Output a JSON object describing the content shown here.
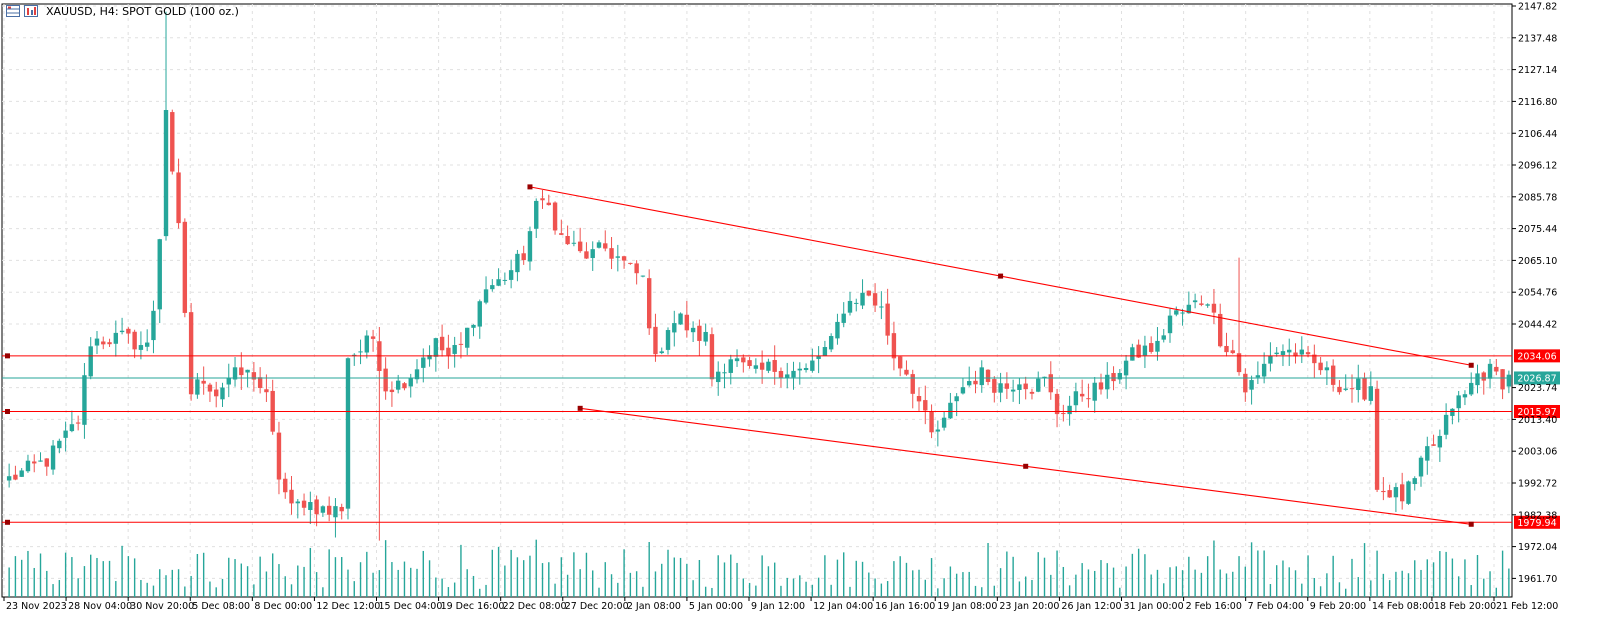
{
  "header": {
    "title": "XAUUSD, H4:  SPOT GOLD (100 oz.)"
  },
  "colors": {
    "bull": "#26a69a",
    "bear": "#ef5350",
    "volume": "#26a69a",
    "trendline": "#ff0000",
    "current_price_line": "#26a69a",
    "grid": "#e0e0e0"
  },
  "chart_data": {
    "type": "candlestick",
    "symbol": "XAUUSD",
    "timeframe": "H4",
    "description": "SPOT GOLD (100 oz.)",
    "ylim": [
      1955.0,
      2147.82
    ],
    "y_ticks": [
      "2147.82",
      "2137.48",
      "2127.14",
      "2116.80",
      "2106.44",
      "2096.12",
      "2085.78",
      "2075.44",
      "2065.10",
      "2054.76",
      "2044.42",
      "2023.74",
      "2013.40",
      "2003.06",
      "1992.72",
      "1982.38",
      "1972.04",
      "1961.70"
    ],
    "x_ticks": [
      "23 Nov 2023",
      "28 Nov 04:00",
      "30 Nov 20:00",
      "5 Dec 08:00",
      "8 Dec 00:00",
      "12 Dec 12:00",
      "15 Dec 04:00",
      "19 Dec 16:00",
      "22 Dec 08:00",
      "27 Dec 20:00",
      "2 Jan 08:00",
      "5 Jan 00:00",
      "9 Jan 12:00",
      "12 Jan 04:00",
      "16 Jan 16:00",
      "19 Jan 08:00",
      "23 Jan 20:00",
      "26 Jan 12:00",
      "31 Jan 00:00",
      "2 Feb 16:00",
      "7 Feb 04:00",
      "9 Feb 20:00",
      "14 Feb 08:00",
      "18 Feb 20:00",
      "21 Feb 12:00"
    ],
    "current_price": 2026.87,
    "grid": true,
    "horizontal_levels": [
      {
        "label": "2034.06",
        "value": 2034.06
      },
      {
        "label": "2015.97",
        "value": 2015.97
      },
      {
        "label": "1979.94",
        "value": 1979.94
      }
    ],
    "trendlines": [
      {
        "name": "upper",
        "from": {
          "bar": 83,
          "price": 2089.0
        },
        "to": {
          "bar": 233,
          "price": 2031.0
        }
      },
      {
        "name": "lower",
        "from": {
          "bar": 91,
          "price": 2017.0
        },
        "to": {
          "bar": 233,
          "price": 1979.3
        }
      }
    ],
    "anchors": [
      {
        "x": 11.6,
        "y": 2015.97
      },
      {
        "x": 11.6,
        "y": 2034.06
      },
      {
        "x": 12.6,
        "y": 1979.94
      }
    ],
    "close_path": [
      [
        0,
        1994
      ],
      [
        6,
        2000
      ],
      [
        11,
        2013
      ],
      [
        13,
        2039
      ],
      [
        18,
        2040
      ],
      [
        22,
        2037
      ],
      [
        24,
        2062
      ],
      [
        25,
        2110
      ],
      [
        27,
        2075
      ],
      [
        29,
        2022
      ],
      [
        31,
        2027
      ],
      [
        33,
        2022
      ],
      [
        35,
        2027
      ],
      [
        37,
        2028
      ],
      [
        39,
        2028
      ],
      [
        41,
        2020
      ],
      [
        43,
        1995
      ],
      [
        45,
        1984
      ],
      [
        47,
        1987
      ],
      [
        49,
        1985
      ],
      [
        51,
        1983
      ],
      [
        53,
        1985
      ],
      [
        54,
        2034
      ],
      [
        56,
        2036
      ],
      [
        58,
        2040
      ],
      [
        60,
        2024
      ],
      [
        62,
        2025
      ],
      [
        64,
        2028
      ],
      [
        66,
        2034
      ],
      [
        68,
        2038
      ],
      [
        70,
        2034
      ],
      [
        72,
        2037
      ],
      [
        74,
        2047
      ],
      [
        76,
        2056
      ],
      [
        78,
        2058
      ],
      [
        80,
        2062
      ],
      [
        82,
        2067
      ],
      [
        84,
        2082
      ],
      [
        86,
        2086
      ],
      [
        87,
        2074
      ],
      [
        89,
        2071
      ],
      [
        91,
        2067
      ],
      [
        93,
        2067
      ],
      [
        95,
        2069
      ],
      [
        97,
        2066
      ],
      [
        99,
        2062
      ],
      [
        101,
        2059
      ],
      [
        103,
        2032
      ],
      [
        105,
        2044
      ],
      [
        107,
        2046
      ],
      [
        109,
        2041
      ],
      [
        111,
        2040
      ],
      [
        112,
        2027
      ],
      [
        115,
        2034
      ],
      [
        117,
        2030
      ],
      [
        119,
        2028
      ],
      [
        121,
        2030
      ],
      [
        123,
        2030
      ],
      [
        125,
        2029
      ],
      [
        127,
        2029
      ],
      [
        129,
        2034
      ],
      [
        131,
        2038
      ],
      [
        133,
        2050
      ],
      [
        135,
        2053
      ],
      [
        137,
        2054
      ],
      [
        139,
        2049
      ],
      [
        141,
        2034
      ],
      [
        143,
        2029
      ],
      [
        145,
        2019
      ],
      [
        147,
        2008
      ],
      [
        149,
        2012
      ],
      [
        151,
        2022
      ],
      [
        153,
        2026
      ],
      [
        155,
        2028
      ],
      [
        157,
        2025
      ],
      [
        159,
        2024
      ],
      [
        161,
        2027
      ],
      [
        163,
        2024
      ],
      [
        165,
        2026
      ],
      [
        167,
        2016
      ],
      [
        169,
        2018
      ],
      [
        171,
        2022
      ],
      [
        173,
        2023
      ],
      [
        175,
        2025
      ],
      [
        177,
        2030
      ],
      [
        179,
        2034
      ],
      [
        181,
        2036
      ],
      [
        183,
        2037
      ],
      [
        185,
        2047
      ],
      [
        187,
        2048
      ],
      [
        189,
        2051
      ],
      [
        191,
        2053
      ],
      [
        193,
        2040
      ],
      [
        195,
        2035
      ],
      [
        197,
        2023
      ],
      [
        199,
        2027
      ],
      [
        201,
        2035
      ],
      [
        203,
        2036
      ],
      [
        205,
        2035
      ],
      [
        207,
        2032
      ],
      [
        209,
        2030
      ],
      [
        211,
        2026
      ],
      [
        213,
        2024
      ],
      [
        215,
        2024
      ],
      [
        216,
        2017
      ],
      [
        217,
        2027
      ],
      [
        218,
        1991
      ],
      [
        220,
        1990
      ],
      [
        222,
        1988
      ],
      [
        224,
        1993
      ],
      [
        226,
        2003
      ],
      [
        228,
        2007
      ],
      [
        230,
        2018
      ],
      [
        232,
        2021
      ],
      [
        234,
        2028
      ],
      [
        236,
        2029
      ],
      [
        238,
        2026
      ],
      [
        239,
        2027
      ]
    ]
  }
}
